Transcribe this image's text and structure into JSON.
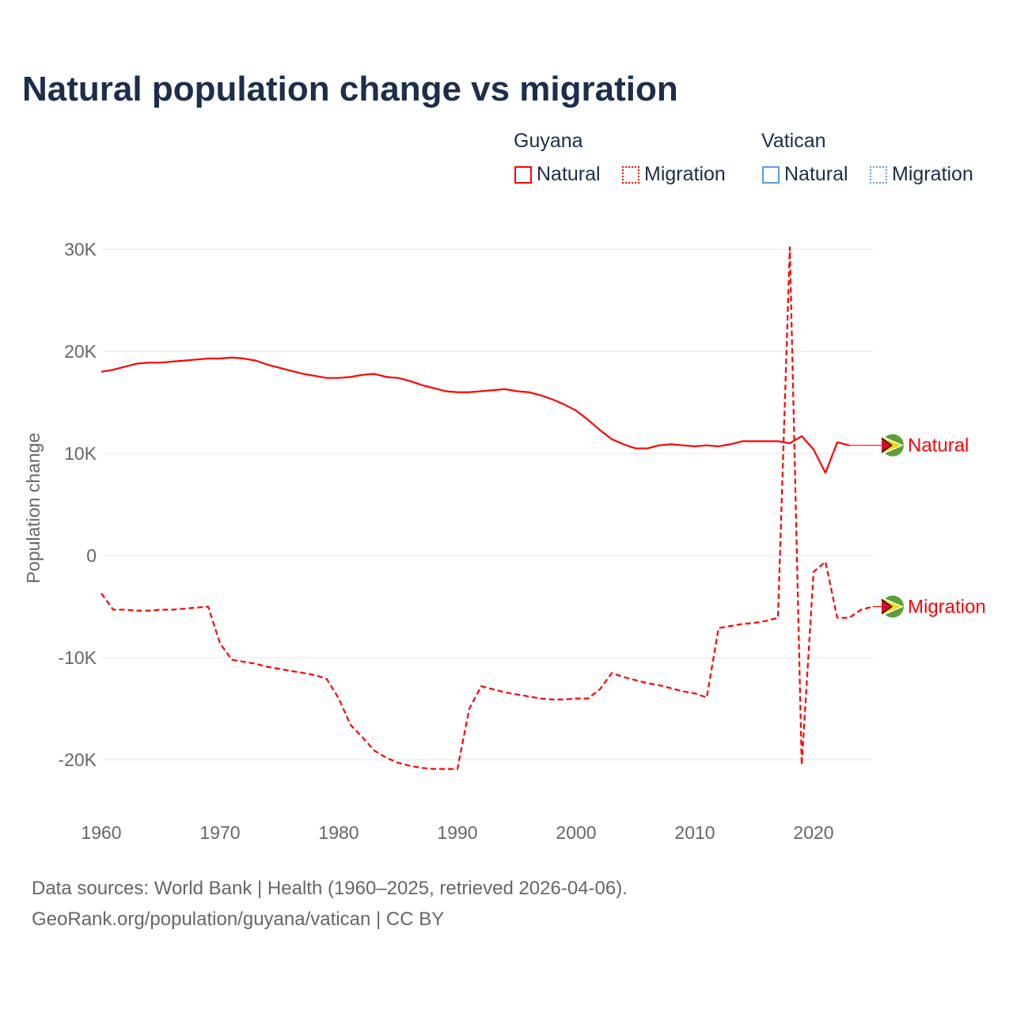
{
  "title": "Natural population change vs migration",
  "legend": {
    "groups": [
      {
        "name": "Guyana",
        "color": "#ff0000",
        "items": [
          {
            "label": "Natural",
            "style": "solid"
          },
          {
            "label": "Migration",
            "style": "dotted"
          }
        ]
      },
      {
        "name": "Vatican",
        "color": "#5b9be0",
        "items": [
          {
            "label": "Natural",
            "style": "solid"
          },
          {
            "label": "Migration",
            "style": "dotted"
          }
        ]
      }
    ]
  },
  "footer": {
    "line1": "Data sources: World Bank | Health (1960–2025, retrieved 2026-04-06).",
    "line2": "GeoRank.org/population/guyana/vatican | CC BY"
  },
  "chart_data": {
    "type": "line",
    "title": "Natural population change vs migration",
    "xlabel": "",
    "ylabel": "Population change",
    "xlim": [
      1960,
      2025
    ],
    "ylim": [
      -25000,
      31000
    ],
    "xticks": [
      1960,
      1970,
      1980,
      1990,
      2000,
      2010,
      2020
    ],
    "yticks": [
      {
        "v": 30000,
        "label": "30K"
      },
      {
        "v": 20000,
        "label": "20K"
      },
      {
        "v": 10000,
        "label": "10K"
      },
      {
        "v": 0,
        "label": "0"
      },
      {
        "v": -10000,
        "label": "-10K"
      },
      {
        "v": -20000,
        "label": "-20K"
      }
    ],
    "grid": true,
    "series": [
      {
        "name": "Natural",
        "country": "Guyana",
        "color": "#ff0000",
        "dash": "solid",
        "end_label": "Natural",
        "x_start": 1960,
        "values": [
          18000,
          18200,
          18500,
          18800,
          18900,
          18900,
          19000,
          19100,
          19200,
          19300,
          19300,
          19400,
          19300,
          19100,
          18700,
          18400,
          18100,
          17800,
          17600,
          17400,
          17400,
          17500,
          17700,
          17800,
          17500,
          17400,
          17100,
          16700,
          16400,
          16100,
          16000,
          16000,
          16100,
          16200,
          16300,
          16100,
          16000,
          15700,
          15300,
          14800,
          14200,
          13300,
          12300,
          11400,
          10900,
          10500,
          10500,
          10800,
          10900,
          10800,
          10700,
          10800,
          10700,
          10900,
          11200,
          11200,
          11200,
          11200,
          11000,
          11700,
          10400,
          8100,
          11100,
          10800
        ]
      },
      {
        "name": "Migration",
        "country": "Guyana",
        "color": "#ff0000",
        "dash": "dashed",
        "end_label": "Migration",
        "x_start": 1960,
        "values": [
          -3700,
          -5300,
          -5300,
          -5400,
          -5400,
          -5300,
          -5300,
          -5200,
          -5100,
          -5000,
          -8600,
          -10200,
          -10400,
          -10600,
          -10900,
          -11100,
          -11300,
          -11500,
          -11700,
          -12100,
          -14000,
          -16600,
          -17800,
          -19100,
          -19800,
          -20300,
          -20600,
          -20800,
          -20900,
          -20900,
          -20900,
          -15000,
          -12800,
          -13100,
          -13400,
          -13600,
          -13800,
          -14000,
          -14100,
          -14100,
          -14000,
          -14000,
          -13100,
          -11500,
          -11900,
          -12200,
          -12500,
          -12700,
          -13000,
          -13300,
          -13500,
          -13900,
          -7100,
          -6900,
          -6700,
          -6600,
          -6400,
          -6100,
          30200,
          -20500,
          -1600,
          -600,
          -6100,
          -6100,
          -5300,
          -5000
        ]
      }
    ]
  }
}
